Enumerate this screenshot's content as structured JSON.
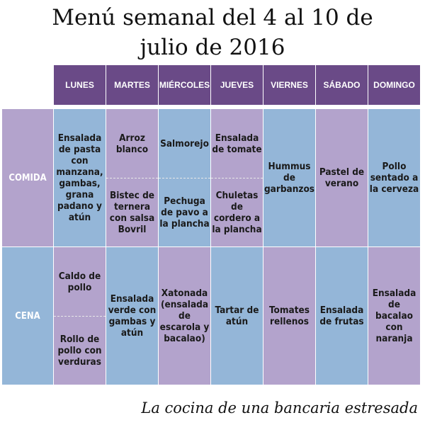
{
  "title": {
    "line1": "Menú semanal del 4 al 10 de",
    "line2": "julio de 2016"
  },
  "days": [
    "LUNES",
    "MARTES",
    "MIÉRCOLES",
    "JUEVES",
    "VIERNES",
    "SÁBADO",
    "DOMINGO"
  ],
  "comida": {
    "label": "COMIDA",
    "lunes": "Ensalada de pasta con manzana, gambas, grana padano y atún",
    "martes_top": "Arroz blanco",
    "martes_bottom": "Bistec de ternera con salsa Bovril",
    "miercoles_top": "Salmorejo",
    "miercoles_bottom": "Pechuga de pavo a la plancha",
    "jueves_top": "Ensalada de tomate",
    "jueves_bottom": "Chuletas de cordero a la plancha",
    "viernes": "Hummus de garbanzos",
    "sabado": "Pastel de verano",
    "domingo": "Pollo sentado a la cerveza"
  },
  "cena": {
    "label": "CENA",
    "lunes_top": "Caldo de pollo",
    "lunes_bottom": "Rollo de pollo con verduras",
    "martes": "Ensalada verde con gambas y atún",
    "miercoles": "Xatonada (ensalada de escarola y bacalao)",
    "jueves": "Tartar de atún",
    "viernes": "Tomates rellenos",
    "sabado": "Ensalada de frutas",
    "domingo": "Ensalada de bacalao con naranja"
  },
  "footer": "La cocina de una bancaria estresada",
  "colors": {
    "header": "#6a4a87",
    "purple": "#b3a3cc",
    "blue": "#94b6d8"
  }
}
